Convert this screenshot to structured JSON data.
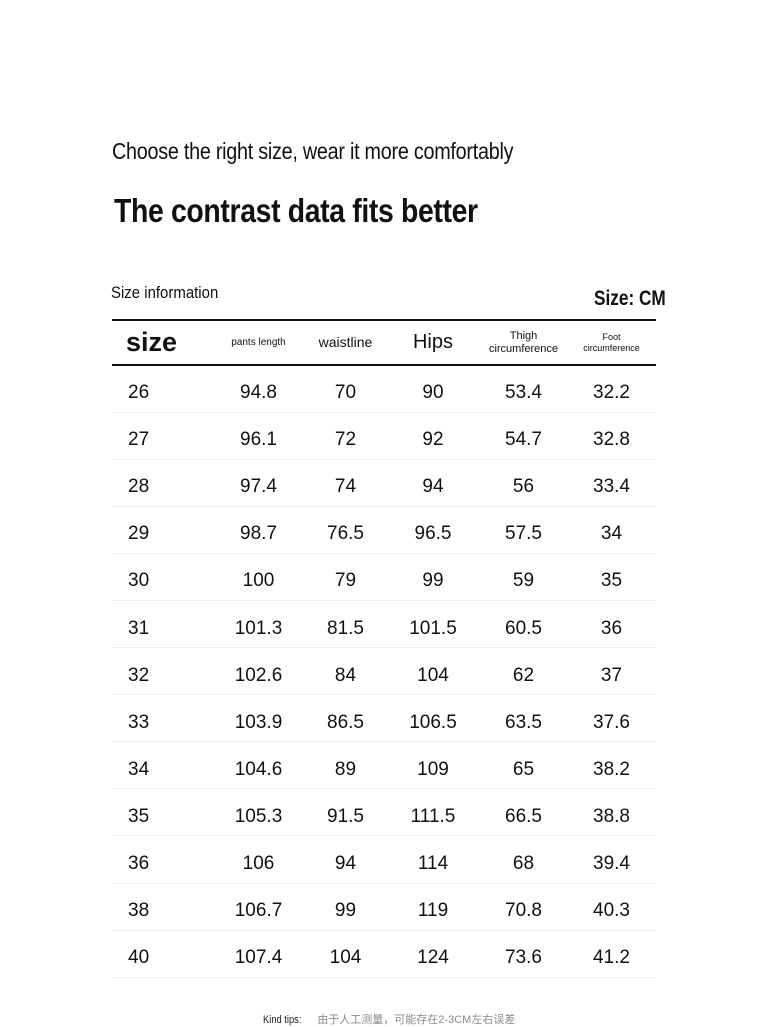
{
  "header": {
    "subtitle": "Choose the right size, wear it more comfortably",
    "headline": "The contrast data fits better"
  },
  "table_meta": {
    "section_label": "Size information",
    "unit_label": "Size: CM"
  },
  "columns": {
    "size": "size",
    "pants_length": "pants length",
    "waistline": "waistline",
    "hips": "Hips",
    "thigh_line1": "Thigh",
    "thigh_line2": "circumference",
    "foot_line1": "Foot",
    "foot_line2": "circumference"
  },
  "rows": [
    [
      "26",
      "94.8",
      "70",
      "90",
      "53.4",
      "32.2"
    ],
    [
      "27",
      "96.1",
      "72",
      "92",
      "54.7",
      "32.8"
    ],
    [
      "28",
      "97.4",
      "74",
      "94",
      "56",
      "33.4"
    ],
    [
      "29",
      "98.7",
      "76.5",
      "96.5",
      "57.5",
      "34"
    ],
    [
      "30",
      "100",
      "79",
      "99",
      "59",
      "35"
    ],
    [
      "31",
      "101.3",
      "81.5",
      "101.5",
      "60.5",
      "36"
    ],
    [
      "32",
      "102.6",
      "84",
      "104",
      "62",
      "37"
    ],
    [
      "33",
      "103.9",
      "86.5",
      "106.5",
      "63.5",
      "37.6"
    ],
    [
      "34",
      "104.6",
      "89",
      "109",
      "65",
      "38.2"
    ],
    [
      "35",
      "105.3",
      "91.5",
      "111.5",
      "66.5",
      "38.8"
    ],
    [
      "36",
      "106",
      "94",
      "114",
      "68",
      "39.4"
    ],
    [
      "38",
      "106.7",
      "99",
      "119",
      "70.8",
      "40.3"
    ],
    [
      "40",
      "107.4",
      "104",
      "124",
      "73.6",
      "41.2"
    ]
  ],
  "footer": {
    "tips_label": "Kind tips:",
    "tips_text": "由于人工测量，可能存在2-3CM左右误差"
  }
}
